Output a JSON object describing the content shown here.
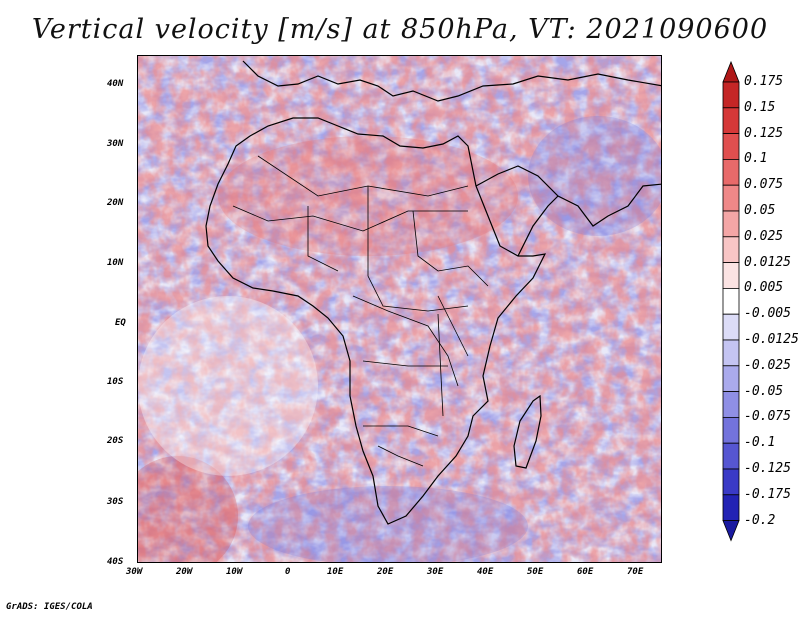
{
  "title": "Vertical velocity [m/s] at 850hPa, VT: 2021090600",
  "credit": "GrADS: IGES/COLA",
  "map": {
    "region": "Africa",
    "variable": "Vertical velocity",
    "units": "m/s",
    "level": "850hPa",
    "valid_time": "2021090600",
    "lat_labels": [
      "40N",
      "30N",
      "20N",
      "10N",
      "EQ",
      "10S",
      "20S",
      "30S",
      "40S"
    ],
    "lon_labels": [
      "30W",
      "20W",
      "10W",
      "0",
      "10E",
      "20E",
      "30E",
      "40E",
      "50E",
      "60E",
      "70E"
    ]
  },
  "colorbar": {
    "labels": [
      "0.175",
      "0.15",
      "0.125",
      "0.1",
      "0.075",
      "0.05",
      "0.025",
      "0.0125",
      "0.005",
      "-0.005",
      "-0.0125",
      "-0.025",
      "-0.05",
      "-0.075",
      "-0.1",
      "-0.125",
      "-0.175",
      "-0.2"
    ],
    "colors": [
      "#b01818",
      "#c42626",
      "#d53838",
      "#e04f4f",
      "#e86a6a",
      "#ef8888",
      "#f4a6a6",
      "#f8c5c5",
      "#fbe3e3",
      "#ffffff",
      "#dcdcf7",
      "#c4c4f2",
      "#aaaaec",
      "#8f8fe5",
      "#7373dc",
      "#5656d2",
      "#3a3ac6",
      "#2323b4",
      "#1a1aa0"
    ]
  }
}
